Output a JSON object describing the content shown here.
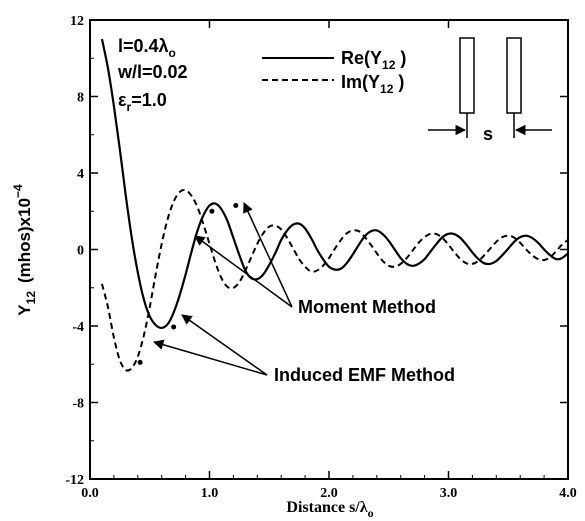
{
  "chart_data": {
    "type": "line",
    "xlabel": "Distance s/λ",
    "xlabel_sub": "o",
    "ylabel_main": "Y",
    "ylabel_sub": "12",
    "ylabel_rest": "(mhos)x10",
    "ylabel_exp": "−4",
    "xlim": [
      0.0,
      4.0
    ],
    "ylim": [
      -12,
      12
    ],
    "x_ticks": [
      "0.0",
      "1.0",
      "2.0",
      "3.0",
      "4.0"
    ],
    "y_ticks": [
      "12",
      "8",
      "4",
      "0",
      "-4",
      "-8",
      "-12"
    ],
    "grid": false,
    "params": {
      "l": "l=0.4λ",
      "l_sub": "o",
      "w": "w/l=0.02",
      "eps": "ε",
      "eps_sub": "r",
      "eps_rest": "=1.0"
    },
    "legend": [
      {
        "name": "Re(Y",
        "sub": "12",
        "close": " )",
        "style": "solid"
      },
      {
        "name": "Im(Y",
        "sub": "12",
        "close": " )",
        "style": "dashed"
      }
    ],
    "annotations": {
      "moment": "Moment Method",
      "emf": "Induced EMF Method",
      "spacing": "s"
    },
    "series": [
      {
        "name": "Re(Y12)",
        "style": "solid",
        "x": [
          0.1,
          0.15,
          0.2,
          0.25,
          0.3,
          0.35,
          0.4,
          0.45,
          0.5,
          0.55,
          0.6,
          0.65,
          0.7,
          0.75,
          0.8,
          0.85,
          0.9,
          0.95,
          1.0,
          1.05,
          1.1,
          1.15,
          1.2,
          1.25,
          1.3,
          1.35,
          1.4,
          1.45,
          1.5,
          1.55,
          1.6,
          1.65,
          1.7,
          1.75,
          1.8,
          1.85,
          1.9,
          1.95,
          2.0,
          2.05,
          2.1,
          2.15,
          2.2,
          2.25,
          2.3,
          2.35,
          2.4,
          2.45,
          2.5,
          2.55,
          2.6,
          2.65,
          2.7,
          2.75,
          2.8,
          2.85,
          2.9,
          2.95,
          3.0,
          3.05,
          3.1,
          3.15,
          3.2,
          3.25,
          3.3,
          3.35,
          3.4,
          3.45,
          3.5,
          3.55,
          3.6,
          3.65,
          3.7,
          3.75,
          3.8,
          3.85,
          3.9,
          3.95,
          4.0
        ],
        "y": [
          11.0,
          9.5,
          7.5,
          5.2,
          2.8,
          0.6,
          -1.2,
          -2.6,
          -3.5,
          -3.95,
          -4.1,
          -3.9,
          -3.3,
          -2.4,
          -1.3,
          -0.1,
          1.0,
          1.8,
          2.3,
          2.4,
          2.1,
          1.5,
          0.6,
          -0.3,
          -1.1,
          -1.5,
          -1.55,
          -1.3,
          -0.8,
          -0.2,
          0.5,
          1.0,
          1.3,
          1.35,
          1.1,
          0.6,
          0.0,
          -0.5,
          -0.9,
          -1.05,
          -1.0,
          -0.7,
          -0.25,
          0.25,
          0.7,
          0.95,
          1.0,
          0.8,
          0.45,
          0.0,
          -0.45,
          -0.75,
          -0.85,
          -0.75,
          -0.5,
          -0.1,
          0.3,
          0.65,
          0.82,
          0.8,
          0.6,
          0.25,
          -0.15,
          -0.5,
          -0.72,
          -0.75,
          -0.6,
          -0.3,
          0.05,
          0.4,
          0.65,
          0.72,
          0.6,
          0.35,
          0.0,
          -0.3,
          -0.5,
          -0.45,
          -0.2
        ],
        "x_start": 0.1,
        "x_end": 4.0,
        "y_start": 11.0,
        "y_end": -0.2
      },
      {
        "name": "Im(Y12)",
        "style": "dashed",
        "x": [
          0.1,
          0.15,
          0.2,
          0.25,
          0.3,
          0.35,
          0.4,
          0.45,
          0.5,
          0.55,
          0.6,
          0.65,
          0.7,
          0.75,
          0.8,
          0.85,
          0.9,
          0.95,
          1.0,
          1.05,
          1.1,
          1.15,
          1.2,
          1.25,
          1.3,
          1.35,
          1.4,
          1.45,
          1.5,
          1.55,
          1.6,
          1.65,
          1.7,
          1.75,
          1.8,
          1.85,
          1.9,
          1.95,
          2.0,
          2.05,
          2.1,
          2.15,
          2.2,
          2.25,
          2.3,
          2.35,
          2.4,
          2.45,
          2.5,
          2.55,
          2.6,
          2.65,
          2.7,
          2.75,
          2.8,
          2.85,
          2.9,
          2.95,
          3.0,
          3.05,
          3.1,
          3.15,
          3.2,
          3.25,
          3.3,
          3.35,
          3.4,
          3.45,
          3.5,
          3.55,
          3.6,
          3.65,
          3.7,
          3.75,
          3.8,
          3.85,
          3.9,
          3.95,
          4.0
        ],
        "y": [
          -1.8,
          -3.0,
          -4.6,
          -5.8,
          -6.3,
          -6.2,
          -5.6,
          -4.5,
          -3.0,
          -1.3,
          0.3,
          1.6,
          2.5,
          3.0,
          3.1,
          2.8,
          2.2,
          1.3,
          0.3,
          -0.7,
          -1.5,
          -1.95,
          -2.0,
          -1.7,
          -1.1,
          -0.4,
          0.3,
          0.85,
          1.2,
          1.25,
          1.05,
          0.6,
          0.05,
          -0.5,
          -0.9,
          -1.15,
          -1.1,
          -0.85,
          -0.45,
          0.05,
          0.5,
          0.85,
          1.0,
          0.95,
          0.65,
          0.25,
          -0.2,
          -0.6,
          -0.85,
          -0.9,
          -0.75,
          -0.45,
          -0.05,
          0.35,
          0.65,
          0.82,
          0.8,
          0.6,
          0.25,
          -0.15,
          -0.5,
          -0.72,
          -0.75,
          -0.6,
          -0.3,
          0.05,
          0.4,
          0.65,
          0.72,
          0.62,
          0.35,
          0.0,
          -0.3,
          -0.5,
          -0.55,
          -0.4,
          -0.1,
          0.25,
          0.5
        ],
        "x_start": 0.1,
        "x_end": 4.0,
        "y_start": -1.8,
        "y_end": 0.5
      }
    ],
    "emf_points": [
      {
        "x": 0.42,
        "y": -5.9
      },
      {
        "x": 0.7,
        "y": -4.05
      }
    ],
    "moment_points": [
      {
        "x": 1.02,
        "y": 2.0
      },
      {
        "x": 1.22,
        "y": 2.3
      }
    ]
  }
}
